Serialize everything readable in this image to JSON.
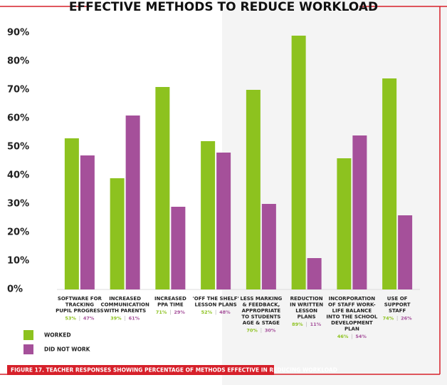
{
  "chart_data": {
    "type": "bar",
    "title": "EFFECTIVE METHODS TO REDUCE WORKLOAD",
    "caption": "FIGURE 17. TEACHER RESPONSES SHOWING PERCENTAGE OF METHODS EFFECTIVE IN REDUCING WORKLOAD",
    "categories": [
      [
        "SOFTWARE  FOR",
        "TRACKING",
        "PUPIL PROGRESS"
      ],
      [
        "INCREASED",
        "COMMUNICATION",
        "WITH PARENTS"
      ],
      [
        "INCREASED",
        "PPA TIME"
      ],
      [
        "'OFF THE SHELF'",
        "LESSON PLANS"
      ],
      [
        "LESS MARKING",
        "& FEEDBACK,",
        "APPROPRIATE",
        "TO STUDENTS",
        "AGE & STAGE"
      ],
      [
        "REDUCTION",
        "IN WRITTEN",
        "LESSON",
        "PLANS"
      ],
      [
        "INCORPORATION",
        "OF STAFF WORK-",
        "LIFE BALANCE",
        "INTO THE SCHOOL",
        "DEVELOPMENT",
        "PLAN"
      ],
      [
        "USE OF",
        "SUPPORT",
        "STAFF"
      ]
    ],
    "series": [
      {
        "name": "WORKED",
        "color": "#8dc21f",
        "values": [
          53,
          39,
          71,
          52,
          70,
          89,
          46,
          74
        ],
        "value_labels": [
          "53%",
          "39%",
          "71%",
          "52%",
          "70%",
          "89%",
          "46%",
          "74%"
        ]
      },
      {
        "name": "DID NOT WORK",
        "color": "#a5509a",
        "values": [
          47,
          61,
          29,
          48,
          30,
          11,
          54,
          26
        ],
        "value_labels": [
          "47%",
          "61%",
          "29%",
          "48%",
          "30%",
          "11%",
          "54%",
          "26%"
        ]
      }
    ],
    "ylim": [
      0,
      90
    ],
    "yticks": [
      {
        "value": 0,
        "label": "0%"
      },
      {
        "value": 10,
        "label": "10%"
      },
      {
        "value": 20,
        "label": "20%"
      },
      {
        "value": 30,
        "label": "30%"
      },
      {
        "value": 40,
        "label": "40%"
      },
      {
        "value": 50,
        "label": "50%"
      },
      {
        "value": 60,
        "label": "60%"
      },
      {
        "value": 70,
        "label": "70%"
      },
      {
        "value": 80,
        "label": "80%"
      },
      {
        "value": 90,
        "label": "90%"
      }
    ]
  }
}
